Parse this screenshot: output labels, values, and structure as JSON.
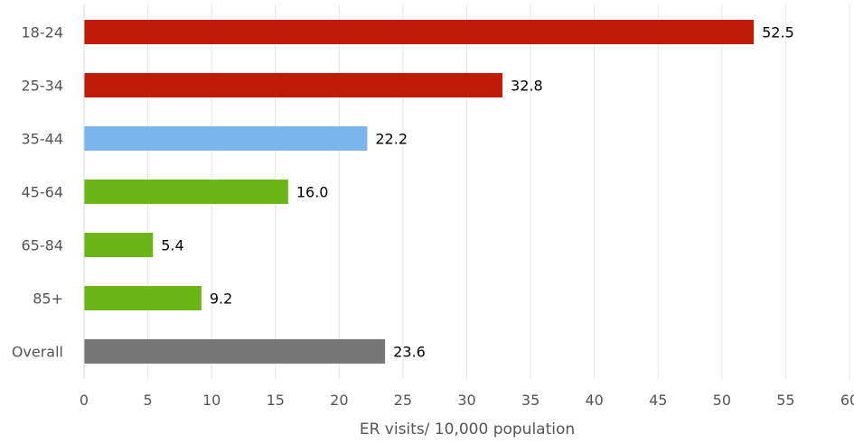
{
  "chart_data": {
    "type": "bar",
    "orientation": "horizontal",
    "categories": [
      "18-24",
      "25-34",
      "35-44",
      "45-64",
      "65-84",
      "85+",
      "Overall"
    ],
    "values": [
      52.5,
      32.8,
      22.2,
      16.0,
      5.4,
      9.2,
      23.6
    ],
    "value_labels": [
      "52.5",
      "32.8",
      "22.2",
      "16.0",
      "5.4",
      "9.2",
      "23.6"
    ],
    "bar_colors": [
      "#c01a08",
      "#c01a08",
      "#7cb5ec",
      "#6bb616",
      "#6bb616",
      "#6bb616",
      "#777777"
    ],
    "xlabel": "ER visits/ 10,000 population",
    "ylabel": "",
    "title": "",
    "xlim": [
      0,
      60
    ],
    "x_ticks": [
      0,
      5,
      10,
      15,
      20,
      25,
      30,
      35,
      40,
      45,
      50,
      55,
      60
    ],
    "grid": "vertical",
    "legend": "none"
  }
}
